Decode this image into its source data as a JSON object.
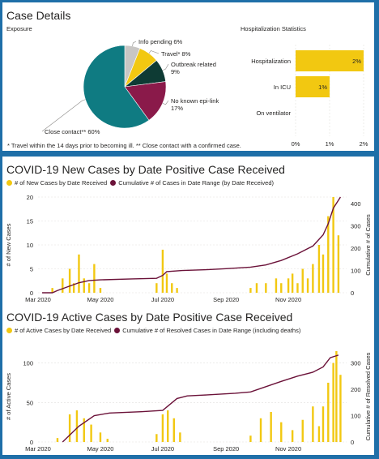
{
  "case_details": {
    "title": "Case Details",
    "exposure_label": "Exposure",
    "hospital_title": "Hospitalization Statistics",
    "footnote": "* Travel within the 14 days prior to becoming ill. ** Close contact with a confirmed case.",
    "colors": {
      "teal": "#0f7b82",
      "maroon": "#8a1a4a",
      "darkgreen": "#0e3b34",
      "yellow": "#f2c811",
      "grey": "#c8c6c4"
    }
  },
  "chart_data": [
    {
      "type": "pie",
      "title": "Exposure",
      "slices": [
        {
          "label": "Close contact**",
          "value": 60,
          "display": "60%",
          "color": "#0f7b82"
        },
        {
          "label": "No known epi-link",
          "value": 17,
          "display": "17%",
          "color": "#8a1a4a"
        },
        {
          "label": "Outbreak related",
          "value": 9,
          "display": "9%",
          "color": "#0e3b34"
        },
        {
          "label": "Travel*",
          "value": 8,
          "display": "8%",
          "color": "#f2c811"
        },
        {
          "label": "Info pending",
          "value": 6,
          "display": "6%",
          "color": "#c8c6c4"
        }
      ]
    },
    {
      "type": "bar",
      "orientation": "horizontal",
      "title": "Hospitalization Statistics",
      "categories": [
        "Hospitalization",
        "In ICU",
        "On ventilator"
      ],
      "values": [
        2,
        1,
        0
      ],
      "labels": [
        "2%",
        "1%",
        ""
      ],
      "xticks": [
        "0%",
        "1%",
        "2%"
      ],
      "xlim": [
        0,
        2
      ]
    },
    {
      "type": "bar+line",
      "title": "COVID-19 New Cases by Date Positive Case Received",
      "legend": [
        "# of New Cases by Date Received",
        "Cumulative # of Cases in Date Range (by Date Received)"
      ],
      "ylabel": "# of New Cases",
      "y2label": "Cumulative # of Cases",
      "xticks": [
        "Mar 2020",
        "May 2020",
        "Jul 2020",
        "Sep 2020",
        "Nov 2020"
      ],
      "yticks": [
        0,
        5,
        10,
        15,
        20
      ],
      "y2ticks": [
        0,
        100,
        200,
        300,
        400
      ],
      "ylim": [
        0,
        20
      ],
      "y2lim": [
        0,
        430
      ],
      "series": [
        {
          "name": "# of New Cases by Date Received",
          "axis": "y",
          "color": "#f2c811",
          "x": [
            "2020-03-15",
            "2020-03-25",
            "2020-04-01",
            "2020-04-05",
            "2020-04-10",
            "2020-04-15",
            "2020-04-20",
            "2020-04-25",
            "2020-05-01",
            "2020-06-25",
            "2020-07-01",
            "2020-07-05",
            "2020-07-10",
            "2020-07-15",
            "2020-09-25",
            "2020-10-01",
            "2020-10-10",
            "2020-10-20",
            "2020-10-25",
            "2020-11-01",
            "2020-11-05",
            "2020-11-10",
            "2020-11-15",
            "2020-11-20",
            "2020-11-25",
            "2020-12-01",
            "2020-12-05",
            "2020-12-10",
            "2020-12-15",
            "2020-12-20"
          ],
          "y": [
            1,
            3,
            5,
            2,
            8,
            3,
            2,
            6,
            1,
            2,
            9,
            4,
            2,
            1,
            1,
            2,
            2,
            3,
            2,
            3,
            4,
            2,
            5,
            3,
            6,
            10,
            8,
            16,
            20,
            12
          ]
        },
        {
          "name": "Cumulative # of Cases in Date Range (by Date Received)",
          "axis": "y2",
          "color": "#6b1239",
          "x": [
            "2020-03-05",
            "2020-03-15",
            "2020-03-20",
            "2020-04-01",
            "2020-04-10",
            "2020-04-20",
            "2020-05-01",
            "2020-06-01",
            "2020-06-25",
            "2020-07-01",
            "2020-07-05",
            "2020-07-20",
            "2020-08-15",
            "2020-09-01",
            "2020-09-25",
            "2020-10-10",
            "2020-10-25",
            "2020-11-10",
            "2020-11-25",
            "2020-12-05",
            "2020-12-10",
            "2020-12-15",
            "2020-12-22"
          ],
          "y": [
            0,
            0,
            10,
            30,
            45,
            55,
            58,
            62,
            65,
            78,
            95,
            100,
            104,
            108,
            115,
            125,
            145,
            175,
            210,
            260,
            310,
            380,
            430
          ]
        }
      ]
    },
    {
      "type": "bar+line",
      "title": "COVID-19 Active Cases by Date Positive Case Received",
      "legend": [
        "# of Active Cases by Date Received",
        "Cumulative # of Resolved Cases in Date Range (including deaths)"
      ],
      "ylabel": "# of Active Cases",
      "y2label": "Cumulative # of Resolved Cases",
      "xticks": [
        "Mar 2020",
        "May 2020",
        "Jul 2020",
        "Sep 2020",
        "Nov 2020"
      ],
      "yticks": [
        0,
        50,
        100
      ],
      "y2ticks": [
        0,
        100,
        200,
        300
      ],
      "ylim": [
        0,
        115
      ],
      "y2lim": [
        0,
        345
      ],
      "series": [
        {
          "name": "# of Active Cases by Date Received",
          "axis": "y",
          "color": "#f2c811",
          "x": [
            "2020-03-20",
            "2020-04-01",
            "2020-04-08",
            "2020-04-15",
            "2020-04-22",
            "2020-05-01",
            "2020-05-08",
            "2020-06-25",
            "2020-07-01",
            "2020-07-06",
            "2020-07-12",
            "2020-07-18",
            "2020-09-25",
            "2020-10-05",
            "2020-10-15",
            "2020-10-25",
            "2020-11-05",
            "2020-11-15",
            "2020-11-25",
            "2020-12-01",
            "2020-12-05",
            "2020-12-10",
            "2020-12-15",
            "2020-12-18",
            "2020-12-22"
          ],
          "y": [
            5,
            35,
            40,
            30,
            22,
            12,
            4,
            10,
            35,
            40,
            30,
            12,
            8,
            30,
            38,
            25,
            15,
            28,
            45,
            20,
            45,
            75,
            100,
            115,
            85
          ]
        },
        {
          "name": "Cumulative # of Resolved Cases in Date Range (including deaths)",
          "axis": "y2",
          "color": "#6b1239",
          "x": [
            "2020-03-25",
            "2020-04-10",
            "2020-04-25",
            "2020-05-10",
            "2020-06-10",
            "2020-07-01",
            "2020-07-15",
            "2020-07-25",
            "2020-08-10",
            "2020-09-10",
            "2020-09-25",
            "2020-10-10",
            "2020-10-25",
            "2020-11-10",
            "2020-11-25",
            "2020-12-05",
            "2020-12-12",
            "2020-12-20"
          ],
          "y": [
            0,
            60,
            100,
            110,
            115,
            120,
            165,
            175,
            178,
            185,
            190,
            210,
            230,
            250,
            265,
            285,
            320,
            330
          ]
        }
      ]
    }
  ]
}
